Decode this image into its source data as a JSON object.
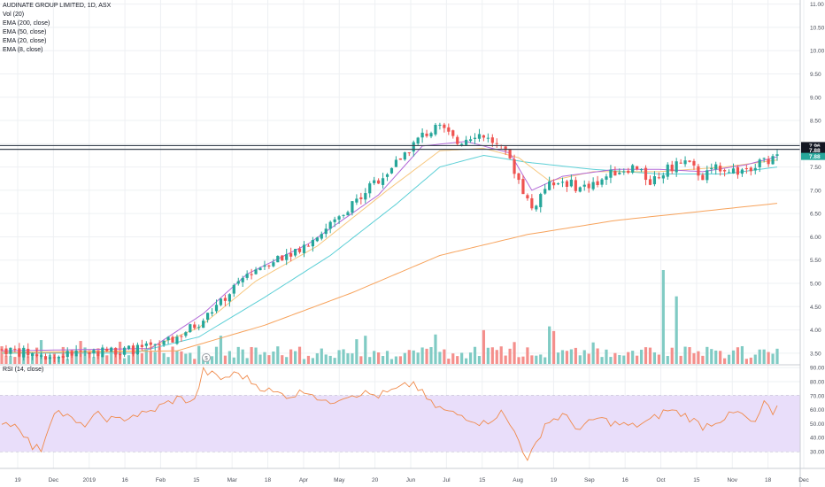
{
  "legend": {
    "title": "AUDINATE GROUP LIMITED, 1D, ASX",
    "vol": "Vol (20)",
    "ema200": "EMA (200, close)",
    "ema50": "EMA (50, close)",
    "ema20": "EMA (20, close)",
    "ema8": "EMA (8, close)"
  },
  "rsi_label": "RSI (14, close)",
  "colors": {
    "up": "#26a69a",
    "down": "#ef5350",
    "vol_up": "#80cbc4",
    "vol_down": "#f48f8c",
    "ema200": "#f7a35c",
    "ema50": "#5ccfd6",
    "ema20": "#f7c77e",
    "ema8": "#b36ad8",
    "rsi_line": "#f08a4b",
    "rsi_band": "#e9defa",
    "grid": "#eef0f3",
    "hline": "#3b4451"
  },
  "chart_data": [
    {
      "type": "candlestick",
      "title": "AUDINATE GROUP LIMITED, 1D, ASX",
      "x_ticks": [
        "19",
        "Dec",
        "2019",
        "16",
        "Feb",
        "15",
        "Mar",
        "18",
        "Apr",
        "May",
        "20",
        "Jun",
        "Jul",
        "15",
        "Aug",
        "19",
        "Sep",
        "16",
        "Oct",
        "15",
        "Nov",
        "18",
        "Dec"
      ],
      "y_ticks": [
        "3.50",
        "4.00",
        "4.50",
        "5.00",
        "5.50",
        "6.00",
        "6.50",
        "7.00",
        "7.50",
        "8.00",
        "8.50",
        "9.00",
        "9.50",
        "10.00",
        "10.50",
        "11.00"
      ],
      "ylim": [
        3.25,
        11.05
      ],
      "price_labels": [
        "7.96",
        "7.88",
        "7.88"
      ],
      "horizontal_lines": [
        7.96,
        7.88
      ],
      "price_path": [
        [
          0,
          3.58
        ],
        [
          6,
          3.5
        ],
        [
          12,
          3.42
        ],
        [
          18,
          3.52
        ],
        [
          24,
          3.55
        ],
        [
          30,
          3.58
        ],
        [
          36,
          3.63
        ],
        [
          40,
          3.85
        ],
        [
          46,
          4.22
        ],
        [
          52,
          4.8
        ],
        [
          56,
          5.2
        ],
        [
          60,
          5.42
        ],
        [
          64,
          5.6
        ],
        [
          70,
          5.85
        ],
        [
          76,
          6.35
        ],
        [
          82,
          6.9
        ],
        [
          88,
          7.4
        ],
        [
          92,
          7.8
        ],
        [
          96,
          8.18
        ],
        [
          100,
          8.35
        ],
        [
          104,
          8.02
        ],
        [
          108,
          8.22
        ],
        [
          112,
          8.05
        ],
        [
          116,
          7.65
        ],
        [
          119,
          7.0
        ],
        [
          121,
          6.6
        ],
        [
          124,
          7.05
        ],
        [
          128,
          7.2
        ],
        [
          132,
          7.05
        ],
        [
          136,
          7.2
        ],
        [
          140,
          7.4
        ],
        [
          144,
          7.5
        ],
        [
          148,
          7.2
        ],
        [
          152,
          7.45
        ],
        [
          156,
          7.6
        ],
        [
          160,
          7.3
        ],
        [
          164,
          7.5
        ],
        [
          168,
          7.4
        ],
        [
          172,
          7.55
        ],
        [
          176,
          7.65
        ],
        [
          177,
          7.88
        ]
      ],
      "volume": {
        "max": 10,
        "spikes": [
          [
            151,
            10
          ],
          [
            154,
            7.2
          ],
          [
            125,
            4
          ],
          [
            126,
            3.5
          ],
          [
            110,
            3.6
          ],
          [
            83,
            3
          ],
          [
            50,
            3
          ]
        ]
      },
      "ema200": [
        [
          0,
          3.5
        ],
        [
          40,
          3.55
        ],
        [
          60,
          4.1
        ],
        [
          80,
          4.8
        ],
        [
          100,
          5.6
        ],
        [
          120,
          6.05
        ],
        [
          140,
          6.35
        ],
        [
          160,
          6.55
        ],
        [
          177,
          6.72
        ]
      ],
      "ema50": [
        [
          0,
          3.5
        ],
        [
          30,
          3.5
        ],
        [
          45,
          3.85
        ],
        [
          60,
          4.7
        ],
        [
          75,
          5.6
        ],
        [
          90,
          6.7
        ],
        [
          100,
          7.5
        ],
        [
          110,
          7.75
        ],
        [
          120,
          7.6
        ],
        [
          135,
          7.45
        ],
        [
          150,
          7.35
        ],
        [
          165,
          7.35
        ],
        [
          177,
          7.5
        ]
      ],
      "ema20": [
        [
          0,
          3.52
        ],
        [
          32,
          3.55
        ],
        [
          45,
          4.05
        ],
        [
          58,
          5.05
        ],
        [
          72,
          5.8
        ],
        [
          88,
          7.0
        ],
        [
          100,
          7.85
        ],
        [
          110,
          7.9
        ],
        [
          118,
          7.7
        ],
        [
          125,
          7.2
        ],
        [
          135,
          7.4
        ],
        [
          150,
          7.4
        ],
        [
          165,
          7.5
        ],
        [
          177,
          7.65
        ]
      ],
      "ema8": [
        [
          0,
          3.55
        ],
        [
          34,
          3.6
        ],
        [
          46,
          4.35
        ],
        [
          56,
          5.2
        ],
        [
          70,
          5.85
        ],
        [
          86,
          6.9
        ],
        [
          96,
          7.95
        ],
        [
          106,
          8.05
        ],
        [
          116,
          7.8
        ],
        [
          121,
          7.0
        ],
        [
          128,
          7.3
        ],
        [
          140,
          7.45
        ],
        [
          150,
          7.45
        ],
        [
          160,
          7.4
        ],
        [
          170,
          7.55
        ],
        [
          177,
          7.72
        ]
      ]
    },
    {
      "type": "line",
      "title": "RSI (14, close)",
      "y_ticks": [
        "30.00",
        "40.00",
        "50.00",
        "60.00",
        "70.00",
        "80.00",
        "90.00"
      ],
      "ylim": [
        18,
        92
      ],
      "band": [
        30,
        70
      ],
      "values": [
        [
          0,
          52
        ],
        [
          4,
          48
        ],
        [
          7,
          33
        ],
        [
          9,
          32
        ],
        [
          12,
          60
        ],
        [
          15,
          55
        ],
        [
          18,
          48
        ],
        [
          22,
          56
        ],
        [
          26,
          52
        ],
        [
          30,
          56
        ],
        [
          33,
          57
        ],
        [
          36,
          62
        ],
        [
          40,
          68
        ],
        [
          44,
          66
        ],
        [
          46,
          88
        ],
        [
          50,
          82
        ],
        [
          54,
          86
        ],
        [
          58,
          78
        ],
        [
          62,
          72
        ],
        [
          66,
          70
        ],
        [
          70,
          74
        ],
        [
          74,
          64
        ],
        [
          78,
          70
        ],
        [
          82,
          72
        ],
        [
          86,
          70
        ],
        [
          90,
          74
        ],
        [
          94,
          79
        ],
        [
          98,
          64
        ],
        [
          102,
          58
        ],
        [
          106,
          55
        ],
        [
          110,
          50
        ],
        [
          114,
          58
        ],
        [
          118,
          40
        ],
        [
          120,
          22
        ],
        [
          124,
          50
        ],
        [
          128,
          56
        ],
        [
          132,
          46
        ],
        [
          136,
          54
        ],
        [
          140,
          50
        ],
        [
          144,
          48
        ],
        [
          148,
          52
        ],
        [
          152,
          60
        ],
        [
          156,
          56
        ],
        [
          160,
          48
        ],
        [
          164,
          53
        ],
        [
          168,
          58
        ],
        [
          172,
          49
        ],
        [
          174,
          66
        ],
        [
          176,
          55
        ],
        [
          177,
          60
        ]
      ]
    }
  ]
}
